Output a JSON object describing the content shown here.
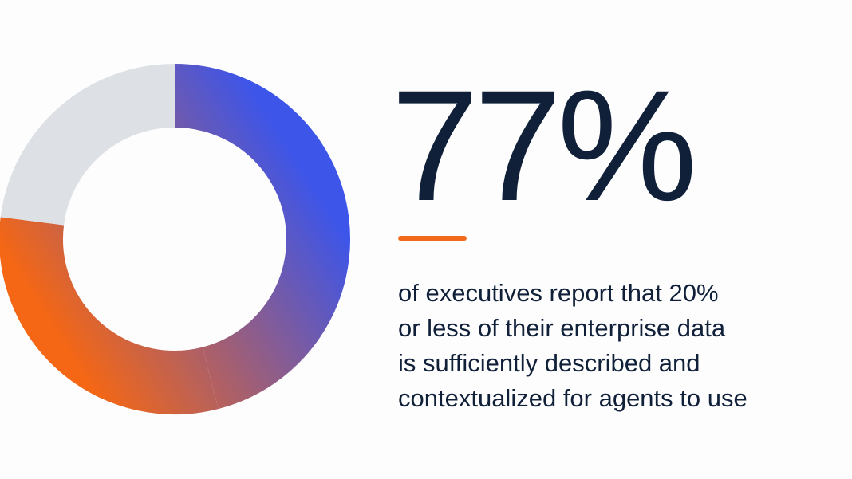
{
  "colors": {
    "text": "#102039",
    "accent": "#f26a1b",
    "blue": "#3d55e8",
    "orange": "#f56714",
    "gray": "#dde1e5"
  },
  "chart_data": {
    "type": "pie",
    "variant": "donut",
    "slices": [
      {
        "share": 46,
        "color": "#3d55e8"
      },
      {
        "share": 31,
        "color": "#f56714"
      },
      {
        "share": 23,
        "color": "#dde1e5"
      }
    ],
    "highlighted_percent": 77,
    "gradient_between_colored_slices": true
  },
  "stat": {
    "value": "77%",
    "description_lines": [
      "of executives report that 20%",
      "or less of their enterprise data",
      "is sufficiently described and",
      "contextualized for agents to use"
    ]
  }
}
